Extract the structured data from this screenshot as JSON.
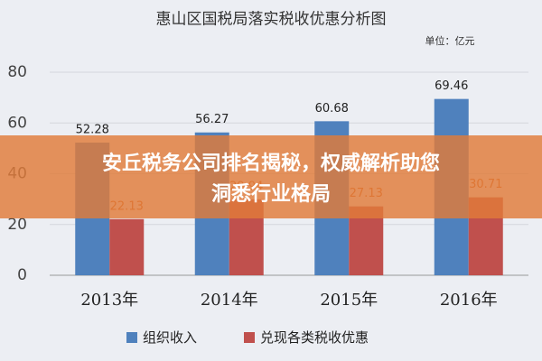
{
  "chart_data": {
    "type": "bar",
    "title": "惠山区国税局落实税收优惠分析图",
    "unit": "单位：亿元",
    "categories": [
      "2013年",
      "2014年",
      "2015年",
      "2016年"
    ],
    "series": [
      {
        "name": "组织收入",
        "color": "#4f81bd",
        "values": [
          52.28,
          56.27,
          60.68,
          69.46
        ]
      },
      {
        "name": "兑现各类税收优惠",
        "color": "#c0504d",
        "values": [
          22.13,
          29.94,
          27.13,
          30.71
        ]
      }
    ],
    "ylim": [
      0,
      80
    ],
    "yticks": [
      0,
      20,
      40,
      60,
      80
    ],
    "grid": true
  },
  "banner": {
    "lines": [
      "安丘税务公司排名揭秘，权威解析助您",
      "洞悉行业格局"
    ]
  }
}
